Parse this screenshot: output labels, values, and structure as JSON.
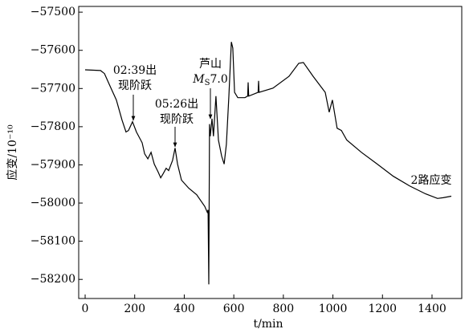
{
  "chart_data": {
    "type": "line",
    "x_label": "t/min",
    "y_label": "应变/10⁻¹⁰",
    "xlim": [
      -26,
      1520
    ],
    "ylim": [
      -58250,
      -57485
    ],
    "xticks": [
      0,
      200,
      400,
      600,
      800,
      1000,
      1200,
      1400
    ],
    "yticks": [
      {
        "value": -57500,
        "label": "−57500"
      },
      {
        "value": -57600,
        "label": "−57600"
      },
      {
        "value": -57700,
        "label": "−57700"
      },
      {
        "value": -57800,
        "label": "−57800"
      },
      {
        "value": -57900,
        "label": "−57900"
      },
      {
        "value": -58000,
        "label": "−58000"
      },
      {
        "value": -58100,
        "label": "−58100"
      },
      {
        "value": -58200,
        "label": "−58200"
      }
    ],
    "series": [
      {
        "color": "#000000",
        "x": [
          0,
          62,
          78,
          100,
          126,
          149,
          165,
          175,
          191,
          207,
          230,
          240,
          253,
          266,
          279,
          295,
          305,
          314,
          327,
          337,
          353,
          363,
          373,
          389,
          418,
          450,
          483,
          493,
          496,
          499,
          502,
          505,
          512,
          518,
          528,
          538,
          551,
          561,
          570,
          580,
          590,
          596,
          603,
          616,
          645,
          656,
          658,
          660,
          698,
          700,
          702,
          758,
          823,
          862,
          881,
          920,
          969,
          985,
          998,
          1017,
          1034,
          1056,
          1115,
          1179,
          1244,
          1309,
          1374,
          1422,
          1445,
          1478
        ],
        "values": [
          -57651,
          -57653,
          -57661,
          -57693,
          -57730,
          -57783,
          -57814,
          -57810,
          -57787,
          -57814,
          -57842,
          -57871,
          -57884,
          -57867,
          -57898,
          -57919,
          -57934,
          -57924,
          -57909,
          -57915,
          -57888,
          -57856,
          -57898,
          -57940,
          -57961,
          -57978,
          -58009,
          -58024,
          -58018,
          -58213,
          -57793,
          -57825,
          -57779,
          -57825,
          -57720,
          -57835,
          -57877,
          -57898,
          -57846,
          -57720,
          -57578,
          -57594,
          -57710,
          -57724,
          -57724,
          -57720,
          -57684,
          -57720,
          -57710,
          -57680,
          -57710,
          -57699,
          -57668,
          -57634,
          -57632,
          -57668,
          -57710,
          -57762,
          -57730,
          -57804,
          -57810,
          -57835,
          -57867,
          -57898,
          -57930,
          -57955,
          -57976,
          -57988,
          -57986,
          -57982
        ]
      }
    ],
    "annotations": [
      {
        "lines": [
          [
            "02:39出"
          ],
          [
            "现阶跃"
          ]
        ]
      },
      {
        "lines": [
          [
            "05:26出"
          ],
          [
            "现阶跃"
          ]
        ]
      },
      {
        "lines": [
          [
            "芦山"
          ],
          [
            "M",
            "S",
            "7.0"
          ]
        ]
      },
      {
        "lines": [
          [
            "2路应变"
          ]
        ]
      }
    ]
  }
}
